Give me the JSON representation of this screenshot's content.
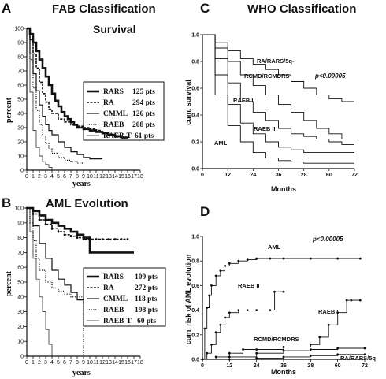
{
  "chart_data": [
    {
      "panel": "A",
      "type": "line",
      "step": true,
      "title": "FAB Classification",
      "subtitle": "Survival",
      "xlabel": "years",
      "ylabel": "percent",
      "xlim": [
        0,
        18
      ],
      "ylim": [
        0,
        100
      ],
      "xticks": [
        "0",
        "1",
        "2",
        "3",
        "4",
        "5",
        "6",
        "7",
        "8",
        "9",
        "10",
        "11",
        "12",
        "13",
        "14",
        "15",
        "16",
        "17",
        "18"
      ],
      "yticks": [
        "0",
        "10",
        "20",
        "30",
        "40",
        "50",
        "60",
        "70",
        "80",
        "90",
        "100"
      ],
      "legend": {
        "placement": "right",
        "entries": [
          "RARS 125 pts",
          "RA 294 pts",
          "CMML 126 pts",
          "RAEB 208 pts",
          "RAEB-T 61 pts"
        ]
      },
      "series": [
        {
          "name": "RARS",
          "pts": 125,
          "style": "thick",
          "x": [
            0,
            0.5,
            1,
            1.5,
            2,
            2.5,
            3,
            3.5,
            4,
            4.5,
            5,
            5.5,
            6,
            6.5,
            7,
            7.5,
            8,
            9,
            10,
            11,
            12,
            13,
            14,
            15,
            16
          ],
          "y": [
            100,
            96,
            90,
            84,
            78,
            72,
            66,
            60,
            54,
            49,
            45,
            41,
            38,
            36,
            34,
            32,
            30,
            29,
            28,
            27,
            26,
            25,
            24,
            23,
            23
          ]
        },
        {
          "name": "RA",
          "pts": 294,
          "style": "dashed",
          "x": [
            0,
            0.5,
            1,
            1.5,
            2,
            2.5,
            3,
            3.5,
            4,
            5,
            6,
            7,
            8,
            9,
            10,
            11,
            12
          ],
          "y": [
            100,
            92,
            82,
            72,
            62,
            54,
            48,
            43,
            40,
            36,
            34,
            32,
            31,
            30,
            29,
            28,
            28
          ]
        },
        {
          "name": "CMML",
          "pts": 126,
          "style": "solid",
          "x": [
            0,
            0.5,
            1,
            1.5,
            2,
            2.5,
            3,
            3.5,
            4,
            5,
            6,
            7,
            8,
            9,
            10,
            11,
            12
          ],
          "y": [
            100,
            82,
            68,
            56,
            46,
            38,
            32,
            28,
            25,
            20,
            16,
            13,
            11,
            9,
            8,
            8,
            8
          ]
        },
        {
          "name": "RAEB",
          "pts": 208,
          "style": "dotted",
          "x": [
            0,
            0.5,
            1,
            1.5,
            2,
            2.5,
            3,
            3.5,
            4,
            5,
            6,
            7,
            8,
            9
          ],
          "y": [
            100,
            78,
            58,
            42,
            32,
            24,
            19,
            15,
            12,
            9,
            7,
            6,
            5,
            5
          ]
        },
        {
          "name": "RAEB-T",
          "pts": 61,
          "style": "thin",
          "x": [
            0,
            0.5,
            1,
            1.5,
            2,
            2.5,
            3,
            3.5,
            4
          ],
          "y": [
            100,
            55,
            28,
            16,
            10,
            6,
            4,
            2,
            0
          ]
        }
      ]
    },
    {
      "panel": "B",
      "type": "line",
      "step": true,
      "title": "AML Evolution",
      "xlabel": "years",
      "ylabel": "percent",
      "xlim": [
        0,
        18
      ],
      "ylim": [
        0,
        100
      ],
      "xticks": [
        "0",
        "1",
        "2",
        "3",
        "4",
        "5",
        "6",
        "7",
        "8",
        "9",
        "10",
        "11",
        "12",
        "13",
        "14",
        "15",
        "16",
        "17",
        "18"
      ],
      "yticks": [
        "0",
        "10",
        "20",
        "30",
        "40",
        "50",
        "60",
        "70",
        "80",
        "90",
        "100"
      ],
      "legend": {
        "placement": "right",
        "entries": [
          "RARS 109 pts",
          "RA 272 pts",
          "CMML 118 pts",
          "RAEB 198 pts",
          "RAEB-T 60 pts"
        ]
      },
      "series": [
        {
          "name": "RARS",
          "pts": 109,
          "style": "thick",
          "x": [
            0,
            1,
            2,
            3,
            4,
            5,
            6,
            7,
            8,
            9,
            10,
            11,
            12,
            13,
            14,
            15,
            16,
            17
          ],
          "y": [
            100,
            98,
            95,
            92,
            90,
            88,
            86,
            84,
            82,
            80,
            70,
            70,
            70,
            70,
            70,
            70,
            70,
            70
          ]
        },
        {
          "name": "RA",
          "pts": 272,
          "style": "dashed-dots",
          "x": [
            0,
            1,
            2,
            3,
            4,
            5,
            6,
            7,
            8,
            9,
            10,
            11,
            12,
            13,
            14,
            15,
            16
          ],
          "y": [
            100,
            96,
            92,
            89,
            86,
            84,
            82,
            81,
            80,
            79,
            79,
            79,
            79,
            79,
            79,
            79,
            79
          ]
        },
        {
          "name": "CMML",
          "pts": 118,
          "style": "solid",
          "x": [
            0,
            1,
            2,
            3,
            4,
            5,
            6,
            7,
            8,
            9
          ],
          "y": [
            100,
            88,
            76,
            66,
            58,
            52,
            48,
            43,
            38,
            36
          ]
        },
        {
          "name": "RAEB",
          "pts": 198,
          "style": "dotted",
          "x": [
            0,
            0.5,
            1,
            1.5,
            2,
            3,
            4,
            5,
            6,
            7,
            8,
            8.5,
            9
          ],
          "y": [
            100,
            90,
            78,
            66,
            58,
            50,
            46,
            44,
            42,
            40,
            40,
            40,
            0
          ]
        },
        {
          "name": "RAEB-T",
          "pts": 60,
          "style": "thin",
          "x": [
            0,
            0.5,
            1,
            1.5,
            2,
            2.5,
            3,
            3.5,
            4
          ],
          "y": [
            100,
            84,
            66,
            52,
            40,
            30,
            18,
            8,
            0
          ]
        }
      ]
    },
    {
      "panel": "C",
      "type": "line",
      "step": true,
      "title": "WHO Classification",
      "xlabel": "Months",
      "ylabel": "cum. survival",
      "xlim": [
        0,
        72
      ],
      "ylim": [
        0,
        1.0
      ],
      "xticks": [
        "0",
        "12",
        "24",
        "36",
        "28",
        "60",
        "72"
      ],
      "yticks": [
        "0.0",
        "0.2",
        "0.4",
        "0.6",
        "0.8",
        "1.0"
      ],
      "pvalue": "p<0.00005",
      "annotations": [
        "RA/RARS/5q-",
        "RCMD/RCMDRS",
        "RAEB I",
        "RAEB II",
        "AML"
      ],
      "series": [
        {
          "name": "RA/RARS/5q-",
          "x": [
            0,
            6,
            12,
            18,
            24,
            30,
            36,
            42,
            48,
            54,
            60,
            66,
            72
          ],
          "y": [
            1.0,
            0.94,
            0.88,
            0.82,
            0.78,
            0.74,
            0.7,
            0.65,
            0.6,
            0.55,
            0.52,
            0.5,
            0.5
          ]
        },
        {
          "name": "RCMD/RCMDRS",
          "x": [
            0,
            6,
            12,
            18,
            24,
            30,
            36,
            42,
            48,
            54,
            60,
            66,
            72
          ],
          "y": [
            1.0,
            0.9,
            0.8,
            0.7,
            0.62,
            0.55,
            0.48,
            0.42,
            0.36,
            0.3,
            0.26,
            0.22,
            0.22
          ]
        },
        {
          "name": "RAEB I",
          "x": [
            0,
            6,
            12,
            18,
            24,
            30,
            36,
            42,
            48,
            54,
            60,
            66,
            72
          ],
          "y": [
            1.0,
            0.82,
            0.64,
            0.5,
            0.42,
            0.36,
            0.3,
            0.26,
            0.24,
            0.22,
            0.2,
            0.18,
            0.18
          ]
        },
        {
          "name": "RAEB II",
          "x": [
            0,
            6,
            12,
            18,
            24,
            30,
            36,
            42,
            48,
            54,
            60,
            66,
            72
          ],
          "y": [
            1.0,
            0.7,
            0.48,
            0.34,
            0.26,
            0.2,
            0.16,
            0.14,
            0.12,
            0.12,
            0.12,
            0.12,
            0.12
          ]
        },
        {
          "name": "AML",
          "x": [
            0,
            6,
            12,
            18,
            24,
            30,
            36,
            42,
            48,
            54,
            60,
            66,
            72
          ],
          "y": [
            1.0,
            0.55,
            0.32,
            0.2,
            0.12,
            0.08,
            0.06,
            0.05,
            0.04,
            0.04,
            0.04,
            0.04,
            0.04
          ]
        }
      ]
    },
    {
      "panel": "D",
      "type": "line",
      "step": true,
      "xlabel": "Months",
      "ylabel": "cum. risk of AML evolution",
      "xlim": [
        0,
        72
      ],
      "ylim": [
        0,
        1.0
      ],
      "xticks": [
        "0",
        "12",
        "24",
        "36",
        "28",
        "60",
        "72"
      ],
      "yticks": [
        "0.0",
        "0.2",
        "0.4",
        "0.6",
        "0.8",
        "1.0"
      ],
      "pvalue": "p<0.00005",
      "annotations": [
        "AML",
        "RAEB II",
        "RAEB I",
        "RCMD/RCMDRS",
        "RA/RARS/5q"
      ],
      "series": [
        {
          "name": "AML",
          "x": [
            0,
            1,
            2,
            3,
            4,
            6,
            8,
            10,
            12,
            16,
            20,
            24,
            30,
            36,
            48,
            60,
            70
          ],
          "y": [
            0,
            0.25,
            0.42,
            0.52,
            0.6,
            0.68,
            0.72,
            0.76,
            0.78,
            0.8,
            0.81,
            0.82,
            0.82,
            0.82,
            0.82,
            0.82,
            0.82
          ]
        },
        {
          "name": "RAEB II",
          "x": [
            0,
            2,
            4,
            6,
            8,
            10,
            12,
            16,
            20,
            24,
            30,
            32,
            36
          ],
          "y": [
            0,
            0.05,
            0.12,
            0.22,
            0.28,
            0.34,
            0.38,
            0.4,
            0.4,
            0.4,
            0.4,
            0.55,
            0.55
          ]
        },
        {
          "name": "RAEB I",
          "x": [
            0,
            6,
            12,
            18,
            24,
            36,
            48,
            52,
            56,
            60,
            64,
            66,
            70
          ],
          "y": [
            0,
            0.02,
            0.05,
            0.08,
            0.08,
            0.1,
            0.12,
            0.18,
            0.28,
            0.38,
            0.48,
            0.48,
            0.48
          ]
        },
        {
          "name": "RCMD/RCMDRS",
          "x": [
            0,
            12,
            24,
            36,
            48,
            60,
            72
          ],
          "y": [
            0,
            0.02,
            0.05,
            0.07,
            0.08,
            0.09,
            0.09
          ]
        },
        {
          "name": "RA/RARS/5q",
          "x": [
            0,
            12,
            24,
            36,
            48,
            60,
            72
          ],
          "y": [
            0,
            0.0,
            0.01,
            0.02,
            0.03,
            0.04,
            0.04
          ]
        }
      ]
    }
  ],
  "labels": {
    "A": {
      "letter": "A",
      "title": "FAB Classification",
      "subtitle": "Survival",
      "xlabel": "years",
      "ylabel": "percent",
      "legend": [
        {
          "name": "RARS",
          "pts": "125 pts"
        },
        {
          "name": "RA",
          "pts": "294 pts"
        },
        {
          "name": "CMML",
          "pts": "126 pts"
        },
        {
          "name": "RAEB",
          "pts": "208 pts"
        },
        {
          "name": "RAEB-T",
          "pts": "61 pts"
        }
      ]
    },
    "B": {
      "letter": "B",
      "title": "AML Evolution",
      "xlabel": "years",
      "ylabel": "percent",
      "legend": [
        {
          "name": "RARS",
          "pts": "109 pts"
        },
        {
          "name": "RA",
          "pts": "272 pts"
        },
        {
          "name": "CMML",
          "pts": "118 pts"
        },
        {
          "name": "RAEB",
          "pts": "198 pts"
        },
        {
          "name": "RAEB-T",
          "pts": "60 pts"
        }
      ]
    },
    "C": {
      "letter": "C",
      "title": "WHO Classification",
      "xlabel": "Months",
      "ylabel": "cum. survival",
      "pvalue": "p<0.00005"
    },
    "D": {
      "letter": "D",
      "xlabel": "Months",
      "ylabel": "cum. risk of AML evolution",
      "pvalue": "p<0.00005"
    }
  },
  "colors": {
    "ink": "#111111",
    "background": "#ffffff"
  }
}
